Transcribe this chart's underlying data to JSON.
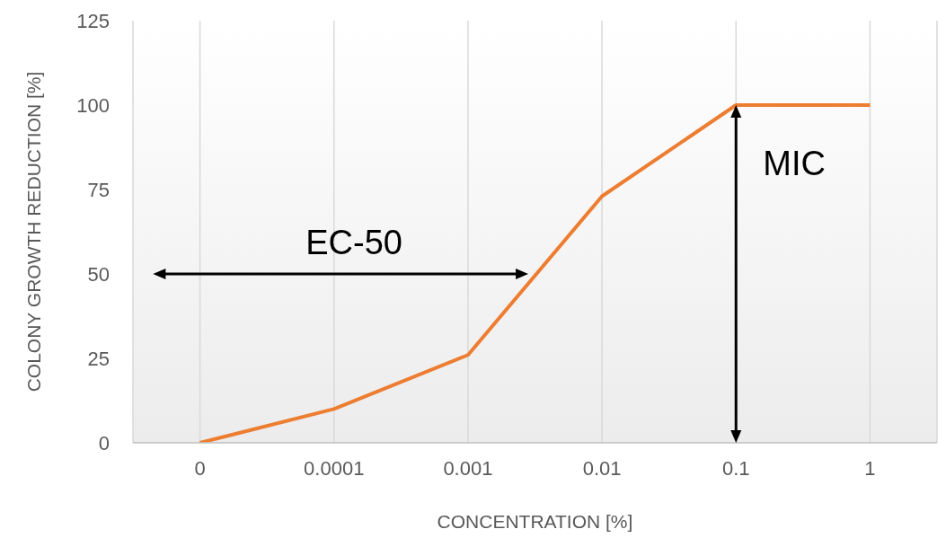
{
  "chart_data": {
    "type": "line",
    "xlabel": "CONCENTRATION [%]",
    "ylabel": "COLONY GROWTH REDUCTION [%]",
    "categories": [
      "0",
      "0.0001",
      "0.001",
      "0.01",
      "0.1",
      "1"
    ],
    "series": [
      {
        "color": "#ed7d31",
        "values": [
          0,
          10,
          26,
          73,
          100,
          100
        ]
      }
    ],
    "ylim": [
      0,
      125
    ],
    "yticks": [
      0,
      25,
      50,
      75,
      100,
      125
    ],
    "grid": "x",
    "legend": false,
    "marker": "none",
    "line_style": "solid",
    "annotations": [
      "EC-50",
      {
        "text": "MIC",
        "x": "0.1",
        "y": 100
      }
    ]
  }
}
